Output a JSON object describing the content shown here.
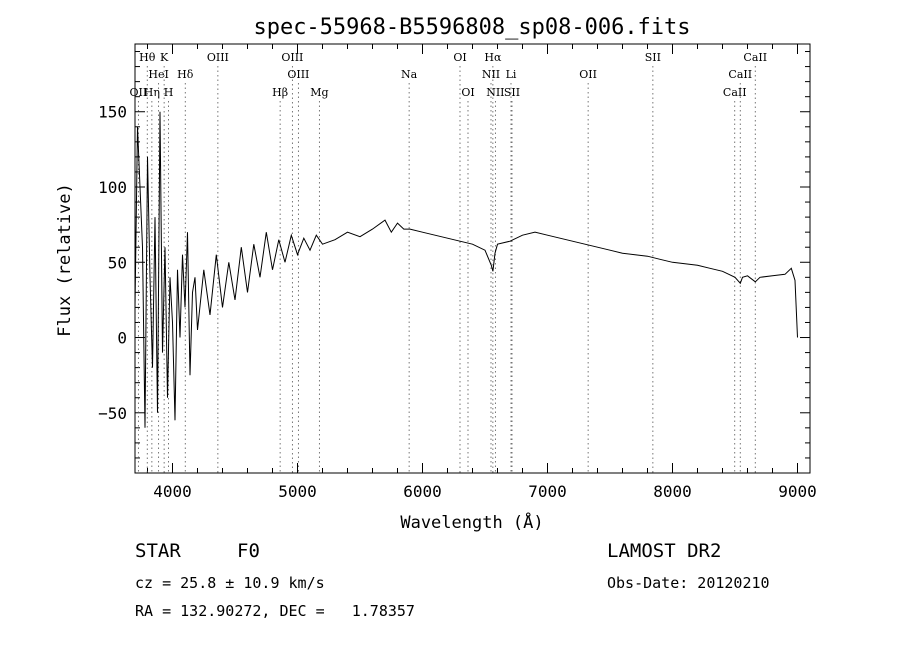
{
  "chart_data": {
    "type": "line",
    "title": "spec-55968-B5596808_sp08-006.fits",
    "xlabel": "Wavelength (Å)",
    "ylabel": "Flux (relative)",
    "xlim": [
      3700,
      9100
    ],
    "ylim": [
      -90,
      195
    ],
    "xticks": [
      4000,
      5000,
      6000,
      7000,
      8000,
      9000
    ],
    "yticks": [
      -50,
      0,
      50,
      100,
      150
    ],
    "grid": false,
    "series": [
      {
        "name": "flux",
        "x": [
          3700,
          3720,
          3740,
          3760,
          3780,
          3800,
          3820,
          3840,
          3860,
          3880,
          3900,
          3920,
          3940,
          3960,
          3980,
          4000,
          4020,
          4040,
          4060,
          4080,
          4100,
          4120,
          4140,
          4160,
          4180,
          4200,
          4250,
          4300,
          4350,
          4400,
          4450,
          4500,
          4550,
          4600,
          4650,
          4700,
          4750,
          4800,
          4850,
          4900,
          4950,
          5000,
          5050,
          5100,
          5150,
          5200,
          5300,
          5400,
          5500,
          5600,
          5700,
          5750,
          5800,
          5850,
          5900,
          6000,
          6100,
          6200,
          6300,
          6400,
          6500,
          6550,
          6563,
          6580,
          6600,
          6700,
          6800,
          6900,
          7000,
          7100,
          7200,
          7300,
          7400,
          7500,
          7600,
          7700,
          7800,
          7900,
          8000,
          8100,
          8200,
          8300,
          8400,
          8450,
          8500,
          8542,
          8560,
          8600,
          8662,
          8700,
          8800,
          8900,
          8950,
          8980,
          9000
        ],
        "y": [
          20,
          140,
          100,
          60,
          -60,
          120,
          40,
          -20,
          80,
          -50,
          150,
          -10,
          60,
          -40,
          40,
          10,
          -55,
          45,
          0,
          55,
          20,
          70,
          -25,
          30,
          40,
          5,
          45,
          15,
          55,
          20,
          50,
          25,
          60,
          30,
          62,
          40,
          70,
          45,
          65,
          50,
          68,
          55,
          66,
          58,
          68,
          62,
          65,
          70,
          67,
          72,
          78,
          70,
          76,
          72,
          72,
          70,
          68,
          66,
          64,
          62,
          58,
          48,
          44,
          56,
          62,
          64,
          68,
          70,
          68,
          66,
          64,
          62,
          60,
          58,
          56,
          55,
          54,
          52,
          50,
          49,
          48,
          46,
          44,
          42,
          40,
          36,
          40,
          41,
          37,
          40,
          41,
          42,
          46,
          38,
          0
        ]
      }
    ],
    "line_markers": [
      {
        "name": "Hθ",
        "x": 3798,
        "row": 0
      },
      {
        "name": "K",
        "x": 3933,
        "row": 0
      },
      {
        "name": "OIII",
        "x": 4363,
        "row": 0
      },
      {
        "name": "OIII",
        "x": 4959,
        "row": 0
      },
      {
        "name": "OI",
        "x": 6300,
        "row": 0
      },
      {
        "name": "Hα",
        "x": 6563,
        "row": 0
      },
      {
        "name": "SII",
        "x": 7843,
        "row": 0
      },
      {
        "name": "CaII",
        "x": 8662,
        "row": 0
      },
      {
        "name": "HeI",
        "x": 3889,
        "row": 1
      },
      {
        "name": "Hδ",
        "x": 4102,
        "row": 1
      },
      {
        "name": "OIII",
        "x": 5007,
        "row": 1
      },
      {
        "name": "Na",
        "x": 5893,
        "row": 1
      },
      {
        "name": "NII",
        "x": 6548,
        "row": 1
      },
      {
        "name": "Li",
        "x": 6708,
        "row": 1
      },
      {
        "name": "OII",
        "x": 7325,
        "row": 1
      },
      {
        "name": "CaII",
        "x": 8542,
        "row": 1
      },
      {
        "name": "OII",
        "x": 3727,
        "row": 2
      },
      {
        "name": "Hη",
        "x": 3835,
        "row": 2
      },
      {
        "name": "H",
        "x": 3968,
        "row": 2
      },
      {
        "name": "Hβ",
        "x": 4861,
        "row": 2
      },
      {
        "name": "Mg",
        "x": 5175,
        "row": 2
      },
      {
        "name": "OI",
        "x": 6364,
        "row": 2
      },
      {
        "name": "NII",
        "x": 6583,
        "row": 2
      },
      {
        "name": "SII",
        "x": 6716,
        "row": 2
      },
      {
        "name": "CaII",
        "x": 8498,
        "row": 2
      }
    ]
  },
  "info": {
    "class": "STAR",
    "subclass": "F0",
    "survey": "LAMOST DR2",
    "cz": "cz = 25.8 ± 10.9 km/s",
    "obs_date": "Obs-Date: 20120210",
    "radec": "RA = 132.90272, DEC =   1.78357"
  }
}
